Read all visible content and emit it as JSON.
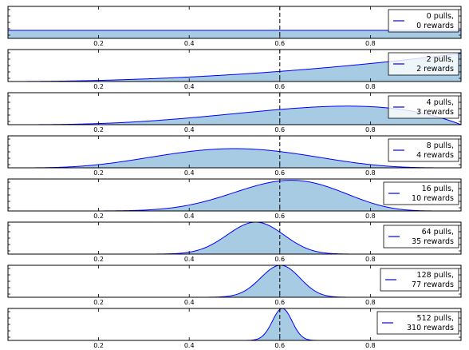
{
  "chart_data": {
    "type": "area",
    "description_of_marks": "posterior Beta densities, filled, per panel",
    "xlim": [
      0,
      1
    ],
    "x_ticks": [
      "0.2",
      "0.4",
      "0.6",
      "0.8"
    ],
    "true_value_line_x": 0.6,
    "colors": {
      "line": "#0000ff",
      "fill": "#a6cbe3",
      "vline": "#000000"
    },
    "panels": [
      {
        "legend_line1": "0 pulls,",
        "legend_line2": "0 rewards",
        "pulls": 0,
        "rewards": 0,
        "peak_fraction": 0.25
      },
      {
        "legend_line1": "2 pulls,",
        "legend_line2": "2 rewards",
        "pulls": 2,
        "rewards": 2,
        "peak_fraction": 0.88
      },
      {
        "legend_line1": "4 pulls,",
        "legend_line2": "3 rewards",
        "pulls": 4,
        "rewards": 3,
        "peak_fraction": 0.58
      },
      {
        "legend_line1": "8 pulls,",
        "legend_line2": "4 rewards",
        "pulls": 8,
        "rewards": 4,
        "peak_fraction": 0.6
      },
      {
        "legend_line1": "16 pulls,",
        "legend_line2": "10 rewards",
        "pulls": 16,
        "rewards": 10,
        "peak_fraction": 0.96
      },
      {
        "legend_line1": "64 pulls,",
        "legend_line2": "35 rewards",
        "pulls": 64,
        "rewards": 35,
        "peak_fraction": 1.0
      },
      {
        "legend_line1": "128 pulls,",
        "legend_line2": "77 rewards",
        "pulls": 128,
        "rewards": 77,
        "peak_fraction": 1.0
      },
      {
        "legend_line1": "512 pulls,",
        "legend_line2": "310 rewards",
        "pulls": 512,
        "rewards": 310,
        "peak_fraction": 1.0
      }
    ]
  }
}
